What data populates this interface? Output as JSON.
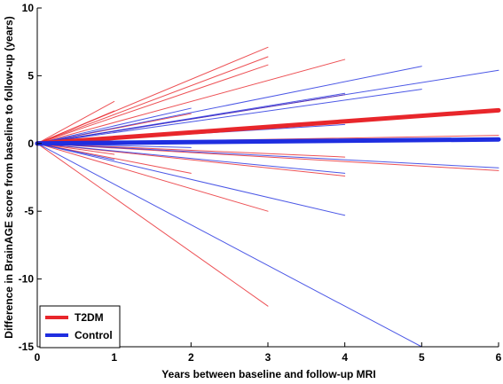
{
  "chart_data": {
    "type": "line",
    "xlabel": "Years between baseline and follow-up MRI",
    "ylabel": "Difference in BrainAGE score from baseline to follow-up (years)",
    "xlim": [
      0,
      6
    ],
    "ylim": [
      -15,
      10
    ],
    "xticks": [
      "0",
      "1",
      "2",
      "3",
      "4",
      "5",
      "6"
    ],
    "yticks": [
      "-15",
      "-10",
      "-5",
      "0",
      "5",
      "10"
    ],
    "grid": false,
    "legend_position": "bottom-left",
    "legend": [
      {
        "name": "T2DM",
        "color": "#e8262b"
      },
      {
        "name": "Control",
        "color": "#1f2ee0"
      }
    ],
    "series": [
      {
        "name": "T2DM",
        "color": "#e8262b",
        "group_mean": {
          "x": 6,
          "y": 2.45
        },
        "subjects": [
          {
            "x": 3,
            "y": 7.1
          },
          {
            "x": 3,
            "y": 6.4
          },
          {
            "x": 4,
            "y": 6.2
          },
          {
            "x": 1,
            "y": 3.1
          },
          {
            "x": 3,
            "y": 5.8
          },
          {
            "x": 1,
            "y": 2.4
          },
          {
            "x": 4,
            "y": 3.6
          },
          {
            "x": 2,
            "y": 2.2
          },
          {
            "x": 6,
            "y": 0.6
          },
          {
            "x": 4,
            "y": -1.0
          },
          {
            "x": 6,
            "y": -2.0
          },
          {
            "x": 4,
            "y": -2.4
          },
          {
            "x": 2,
            "y": -2.2
          },
          {
            "x": 3,
            "y": -5.0
          },
          {
            "x": 3,
            "y": -12.0
          },
          {
            "x": 1,
            "y": -0.8
          }
        ]
      },
      {
        "name": "Control",
        "color": "#1f2ee0",
        "group_mean": {
          "x": 6,
          "y": 0.3
        },
        "subjects": [
          {
            "x": 5,
            "y": 5.7
          },
          {
            "x": 6,
            "y": 5.4
          },
          {
            "x": 5,
            "y": 4.0
          },
          {
            "x": 4,
            "y": 3.7
          },
          {
            "x": 2,
            "y": 2.6
          },
          {
            "x": 4,
            "y": 1.4
          },
          {
            "x": 2,
            "y": -0.3
          },
          {
            "x": 4,
            "y": -2.2
          },
          {
            "x": 6,
            "y": -1.8
          },
          {
            "x": 1,
            "y": -1.2
          },
          {
            "x": 4,
            "y": -5.3
          },
          {
            "x": 5,
            "y": -15.0
          }
        ]
      }
    ]
  }
}
